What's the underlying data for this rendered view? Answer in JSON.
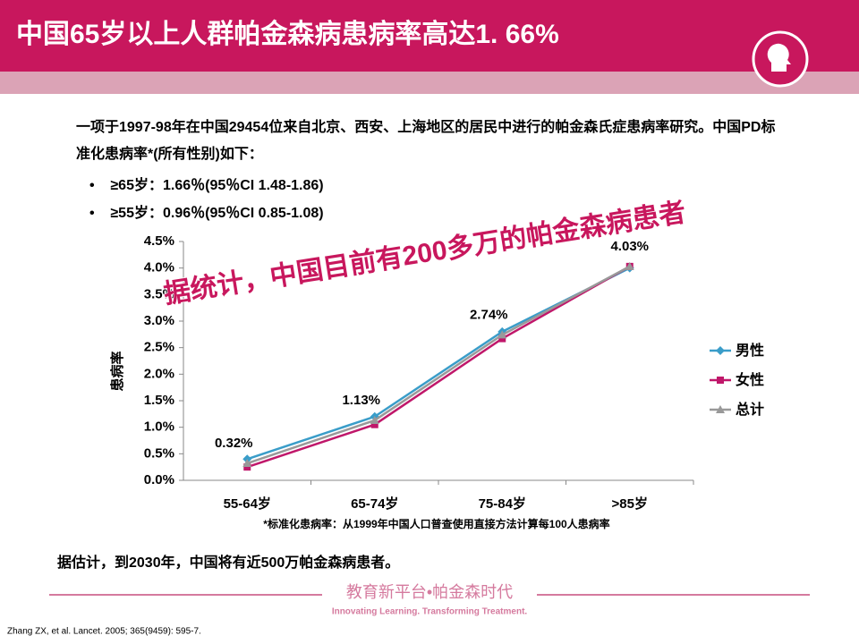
{
  "header": {
    "title": "中国65岁以上人群帕金森病患病率高达1. 66%"
  },
  "intro": "一项于1997-98年在中国29454位来自北京、西安、上海地区的居民中进行的帕金森氏症患病率研究。中国PD标准化患病率*(所有性别)如下：",
  "bullets": [
    "≥65岁：1.66％(95％CI 1.48-1.86)",
    "≥55岁：0.96％(95％CI 0.85-1.08)"
  ],
  "overlay": "据统计，中国目前有200多万的帕金森病患者",
  "chart_data": {
    "type": "line",
    "y_label": "患病率",
    "categories": [
      "55-64岁",
      "65-74岁",
      "75-84岁",
      ">85岁"
    ],
    "ylim": [
      0,
      4.5
    ],
    "yticks": [
      {
        "value": 0,
        "label": "0.0%"
      },
      {
        "value": 0.5,
        "label": "0.5%"
      },
      {
        "value": 1,
        "label": "1.0%"
      },
      {
        "value": 1.5,
        "label": "1.5%"
      },
      {
        "value": 2,
        "label": "2.0%"
      },
      {
        "value": 2.5,
        "label": "2.5%"
      },
      {
        "value": 3,
        "label": "3.0%"
      },
      {
        "value": 3.5,
        "label": "3.5%"
      },
      {
        "value": 4,
        "label": "4.0%"
      },
      {
        "value": 4.5,
        "label": "4.5%"
      }
    ],
    "legend": "right",
    "series": [
      {
        "name": "男性",
        "color": "#3a9dc9",
        "marker": "diamond",
        "values": [
          0.4,
          1.2,
          2.8,
          4.0
        ]
      },
      {
        "name": "女性",
        "color": "#c0176a",
        "marker": "square",
        "values": [
          0.25,
          1.05,
          2.67,
          4.03
        ]
      },
      {
        "name": "总计",
        "color": "#999999",
        "marker": "triangle",
        "values": [
          0.32,
          1.13,
          2.74,
          4.03
        ],
        "value_labels": [
          "0.32%",
          "1.13%",
          "2.74%",
          "4.03%"
        ]
      }
    ],
    "footnote": "*标准化患病率：从1999年中国人口普查使用直接方法计算每100人患病率"
  },
  "conclusion": "据估计，到2030年，中国将有近500万帕金森病患者。",
  "footer": {
    "brand": "教育新平台•帕金森时代",
    "tagline": "Innovating Learning. Transforming Treatment.",
    "reference": "Zhang ZX, et al. Lancet. 2005; 365(9459): 595-7."
  }
}
